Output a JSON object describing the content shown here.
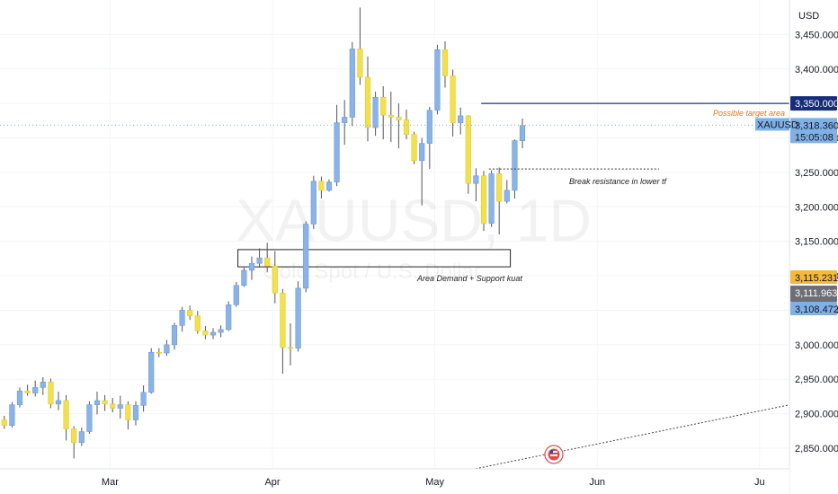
{
  "chart_data": {
    "type": "candlestick",
    "symbol": "XAUUSD",
    "watermark": {
      "symbol": "XAUUSD",
      "suffix": "1D",
      "subtitle": "Gold Spot / U.S. Dollar"
    },
    "currency": "USD",
    "ylim": [
      2820,
      3500
    ],
    "y_ticks": [
      "2,850.000",
      "2,900.000",
      "2,950.000",
      "3,000.000",
      "3,050.000",
      "3,100.000",
      "3,150.000",
      "3,200.000",
      "3,250.000",
      "3,300.000",
      "3,350.000",
      "3,400.000",
      "3,450.000"
    ],
    "y_tick_values": [
      2850,
      2900,
      2950,
      3000,
      3050,
      3100,
      3150,
      3200,
      3250,
      3300,
      3350,
      3400,
      3450
    ],
    "x_labels": [
      "Mar",
      "Apr",
      "May",
      "Jun",
      "Ju"
    ],
    "x_label_index": [
      14,
      35,
      56,
      77,
      98
    ],
    "candles": [
      [
        2891,
        2897,
        2878,
        2883
      ],
      [
        2883,
        2917,
        2880,
        2913
      ],
      [
        2913,
        2938,
        2909,
        2933
      ],
      [
        2933,
        2942,
        2926,
        2930
      ],
      [
        2930,
        2948,
        2925,
        2938
      ],
      [
        2938,
        2953,
        2927,
        2946
      ],
      [
        2946,
        2951,
        2908,
        2914
      ],
      [
        2914,
        2932,
        2905,
        2919
      ],
      [
        2919,
        2927,
        2861,
        2878
      ],
      [
        2878,
        2882,
        2835,
        2858
      ],
      [
        2858,
        2880,
        2853,
        2874
      ],
      [
        2874,
        2918,
        2871,
        2913
      ],
      [
        2913,
        2932,
        2899,
        2919
      ],
      [
        2919,
        2927,
        2904,
        2914
      ],
      [
        2914,
        2923,
        2902,
        2908
      ],
      [
        2908,
        2926,
        2893,
        2913
      ],
      [
        2913,
        2918,
        2877,
        2891
      ],
      [
        2891,
        2918,
        2883,
        2912
      ],
      [
        2912,
        2941,
        2903,
        2931
      ],
      [
        2931,
        2995,
        2929,
        2989
      ],
      [
        2989,
        2995,
        2982,
        2988
      ],
      [
        2988,
        3007,
        2984,
        3000
      ],
      [
        3000,
        3032,
        2993,
        3028
      ],
      [
        3028,
        3055,
        3019,
        3050
      ],
      [
        3050,
        3057,
        3036,
        3042
      ],
      [
        3042,
        3049,
        3016,
        3020
      ],
      [
        3020,
        3027,
        3008,
        3014
      ],
      [
        3014,
        3024,
        3008,
        3018
      ],
      [
        3018,
        3028,
        3011,
        3022
      ],
      [
        3022,
        3063,
        3020,
        3058
      ],
      [
        3058,
        3091,
        3055,
        3086
      ],
      [
        3086,
        3112,
        3084,
        3108
      ],
      [
        3108,
        3128,
        3094,
        3118
      ],
      [
        3118,
        3140,
        3112,
        3126
      ],
      [
        3126,
        3148,
        3105,
        3114
      ],
      [
        3114,
        3136,
        3060,
        3075
      ],
      [
        3075,
        3081,
        2958,
        2996
      ],
      [
        2996,
        3031,
        2970,
        2995
      ],
      [
        2995,
        3092,
        2990,
        3082
      ],
      [
        3082,
        3179,
        3076,
        3175
      ],
      [
        3175,
        3245,
        3168,
        3237
      ],
      [
        3237,
        3244,
        3212,
        3224
      ],
      [
        3224,
        3240,
        3222,
        3236
      ],
      [
        3236,
        3348,
        3230,
        3322
      ],
      [
        3322,
        3355,
        3290,
        3330
      ],
      [
        3330,
        3439,
        3317,
        3429
      ],
      [
        3429,
        3489,
        3377,
        3388
      ],
      [
        3388,
        3418,
        3295,
        3315
      ],
      [
        3315,
        3367,
        3303,
        3359
      ],
      [
        3359,
        3375,
        3298,
        3333
      ],
      [
        3333,
        3367,
        3294,
        3330
      ],
      [
        3330,
        3350,
        3285,
        3326
      ],
      [
        3326,
        3341,
        3298,
        3305
      ],
      [
        3305,
        3309,
        3262,
        3267
      ],
      [
        3267,
        3300,
        3202,
        3292
      ],
      [
        3292,
        3345,
        3255,
        3340
      ],
      [
        3340,
        3435,
        3334,
        3428
      ],
      [
        3428,
        3440,
        3373,
        3390
      ],
      [
        3390,
        3399,
        3302,
        3322
      ],
      [
        3322,
        3344,
        3305,
        3332
      ],
      [
        3332,
        3333,
        3219,
        3234
      ],
      [
        3234,
        3256,
        3208,
        3245
      ],
      [
        3245,
        3252,
        3165,
        3176
      ],
      [
        3176,
        3253,
        3171,
        3248
      ],
      [
        3248,
        3257,
        3160,
        3208
      ],
      [
        3208,
        3239,
        3205,
        3224
      ],
      [
        3224,
        3298,
        3212,
        3296
      ],
      [
        3296,
        3328,
        3285,
        3318
      ]
    ],
    "target_line": {
      "price": 3350.0,
      "start_index": 62,
      "label": "3,350.000"
    },
    "last_price_line": {
      "price": 3318.36
    },
    "break_line": {
      "price": 3255,
      "start_index": 63,
      "end_index": 85
    },
    "demand_zone": {
      "top": 3138,
      "bottom": 3113,
      "start_index": 31,
      "end_index": 66,
      "label": "Area Demand + Support kuat"
    },
    "trendline": {
      "from": [
        59,
        2815
      ],
      "to": [
        105,
        2920
      ]
    },
    "annotations": {
      "target": "Possible target area",
      "break": "Break resistance in lower tf"
    },
    "price_badges": {
      "target": "3,350.000",
      "symbol": "XAUUSD",
      "last": "3,318.360",
      "countdown": "15:05:08",
      "high": "3,115.231",
      "mid": "3,111.963",
      "low": "3,108.472"
    },
    "colors": {
      "up": "#8ab4e8",
      "down": "#f3e04f",
      "up_border": "#6e9ad6",
      "down_border": "#e6c92f",
      "wick": "#555555",
      "target_line": "#1b3a8c",
      "target_badge": "#162d7a",
      "target_text": "#e8741a",
      "last_price": "#7fb1e6",
      "badge_high": "#f5b93a",
      "badge_mid": "#6e6e76",
      "badge_low": "#7fb1e6",
      "grid": "#f4f5f7"
    },
    "grid": true
  }
}
